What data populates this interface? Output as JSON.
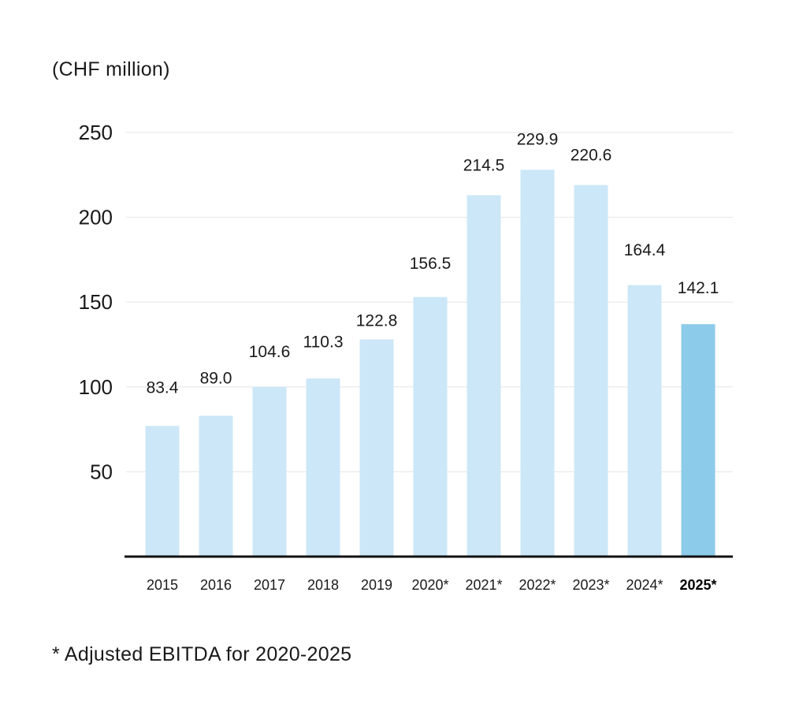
{
  "chart_data": {
    "type": "bar",
    "unit_label": "(CHF million)",
    "categories": [
      "2015",
      "2016",
      "2017",
      "2018",
      "2019",
      "2020*",
      "2021*",
      "2022*",
      "2023*",
      "2024*",
      "2025*"
    ],
    "values": [
      83.4,
      89.0,
      104.6,
      110.3,
      122.8,
      156.5,
      214.5,
      229.9,
      220.6,
      164.4,
      142.1
    ],
    "value_labels": [
      "83.4",
      "89.0",
      "104.6",
      "110.3",
      "122.8",
      "156.5",
      "214.5",
      "229.9",
      "220.6",
      "164.4",
      "142.1"
    ],
    "bar_heights_read": [
      77,
      83,
      100,
      105,
      128,
      153,
      213,
      228,
      219,
      160,
      137
    ],
    "highlight_index": 10,
    "yticks": [
      50,
      100,
      150,
      200,
      250
    ],
    "ylim": [
      0,
      250
    ],
    "grid": true,
    "footnote": "* Adjusted EBITDA for 2020-2025",
    "colors": {
      "bar": "#cce7f7",
      "bar_highlight": "#8ccbea",
      "grid": "#e6e6e6",
      "axis": "#111111",
      "text": "#1a1a1a"
    }
  }
}
